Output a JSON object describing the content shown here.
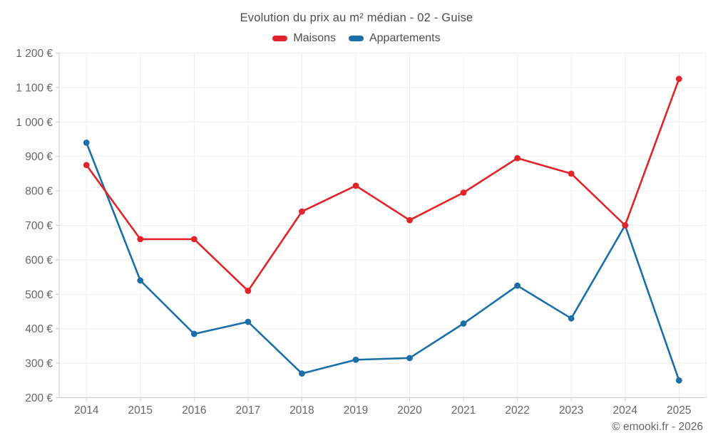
{
  "title": "Evolution du prix au m² médian - 02 - Guise",
  "legend": [
    {
      "label": "Maisons",
      "color": "#e12429"
    },
    {
      "label": "Appartements",
      "color": "#1a6fa8"
    }
  ],
  "copyright": "© emooki.fr - 2026",
  "chart_data": {
    "type": "line",
    "title": "Evolution du prix au m² médian - 02 - Guise",
    "categories": [
      "2014",
      "2015",
      "2016",
      "2017",
      "2018",
      "2019",
      "2020",
      "2021",
      "2022",
      "2023",
      "2024",
      "2025"
    ],
    "series": [
      {
        "name": "Maisons",
        "color": "#e12429",
        "values": [
          875,
          660,
          660,
          510,
          740,
          815,
          715,
          795,
          895,
          850,
          700,
          1125
        ]
      },
      {
        "name": "Appartements",
        "color": "#1a6fa8",
        "values": [
          940,
          540,
          385,
          420,
          270,
          310,
          315,
          415,
          525,
          430,
          700,
          250
        ]
      }
    ],
    "xlabel": "",
    "ylabel": "",
    "ylim": [
      200,
      1200
    ],
    "ytick_step": 100,
    "ytick_labels": [
      "200 €",
      "300 €",
      "400 €",
      "500 €",
      "600 €",
      "700 €",
      "800 €",
      "900 €",
      "1 000 €",
      "1 100 €",
      "1 200 €"
    ],
    "grid": true,
    "legend_position": "top",
    "axis_text_color": "#666666",
    "grid_color": "#ededed",
    "axis_line_color": "#cccccc"
  }
}
